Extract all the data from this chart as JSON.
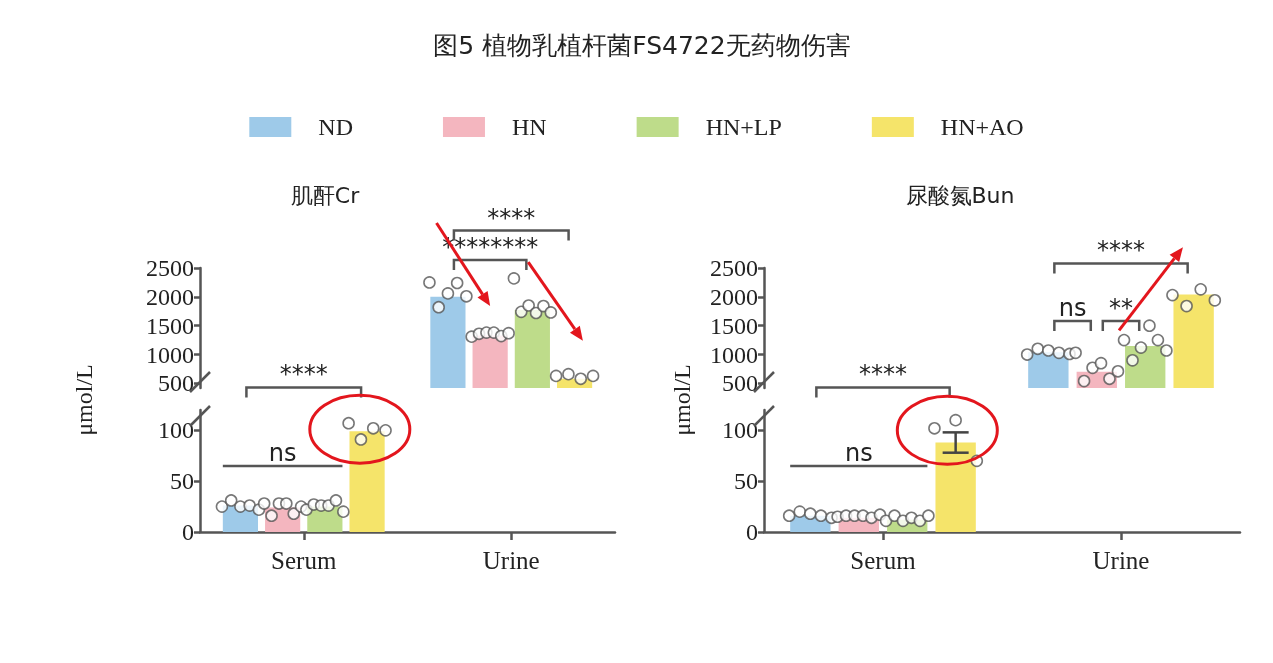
{
  "chart_data": [
    {
      "type": "bar",
      "title": "图5 植物乳植杆菌FS4722无药物伤害",
      "subtitle": "肌酐Cr",
      "legend": "top",
      "marker": "circle",
      "tick_labels": "y",
      "categories": [
        "Serum",
        "Urine"
      ],
      "ylim": [
        420,
        2500
      ],
      "yticks": [
        500,
        1000,
        1500,
        2000,
        2500
      ],
      "series": [
        {
          "name": "ND",
          "color": "#9ecae9",
          "values": [
            null,
            2000
          ]
        },
        {
          "name": "HN",
          "color": "#f4b6bf",
          "values": [
            null,
            1330
          ]
        },
        {
          "name": "HN+LP",
          "color": "#bedc8a",
          "values": [
            null,
            1770
          ]
        },
        {
          "name": "HN+AO",
          "color": "#f5e46a",
          "values": [
            null,
            580
          ]
        },
        {
          "type": "scatter",
          "color": "#ffffff",
          "x": [
            "Urine",
            "Urine",
            "Urine",
            "Urine",
            "Urine"
          ],
          "values": [
            2250,
            1820,
            2060,
            2240,
            2010
          ]
        },
        {
          "type": "scatter",
          "color": "#ffffff",
          "x": [
            "Urine",
            "Urine",
            "Urine",
            "Urine",
            "Urine",
            "Urine"
          ],
          "values": [
            1310,
            1360,
            1380,
            1380,
            1320,
            1370
          ]
        },
        {
          "type": "scatter",
          "color": "#ffffff",
          "x": [
            "Urine",
            "Urine",
            "Urine",
            "Urine",
            "Urine",
            "Urine"
          ],
          "values": [
            2320,
            1740,
            1850,
            1720,
            1840,
            1730
          ]
        },
        {
          "type": "scatter",
          "color": "#ffffff",
          "x": [
            "Urine",
            "Urine",
            "Urine",
            "Urine"
          ],
          "values": [
            630,
            660,
            580,
            630
          ]
        }
      ],
      "annotations": [
        "****",
        "****",
        "********"
      ]
    },
    {
      "type": "bar",
      "ylabel": "μmol/L",
      "marker": "circle",
      "categories": [
        "Serum",
        "Urine"
      ],
      "ylim": [
        0,
        120
      ],
      "yticks": [
        0,
        50,
        100
      ],
      "series": [
        {
          "color": "#9ecae9",
          "values": [
            26,
            null
          ]
        },
        {
          "color": "#f4b6bf",
          "values": [
            24,
            null
          ]
        },
        {
          "color": "#bedc8a",
          "values": [
            25,
            null
          ]
        },
        {
          "color": "#f5e46a",
          "values": [
            99,
            null
          ]
        },
        {
          "type": "scatter",
          "color": "#ffffff",
          "x": [
            "Serum",
            "Serum",
            "Serum",
            "Serum",
            "Serum"
          ],
          "values": [
            25,
            31,
            25,
            26,
            22
          ]
        },
        {
          "type": "scatter",
          "color": "#ffffff",
          "x": [
            "Serum",
            "Serum",
            "Serum",
            "Serum",
            "Serum",
            "Serum"
          ],
          "values": [
            28,
            16,
            28,
            28,
            18,
            25
          ]
        },
        {
          "type": "scatter",
          "color": "#ffffff",
          "x": [
            "Serum",
            "Serum",
            "Serum",
            "Serum",
            "Serum",
            "Serum"
          ],
          "values": [
            22,
            27,
            26,
            26,
            31,
            20
          ]
        },
        {
          "type": "scatter",
          "color": "#ffffff",
          "x": [
            "Serum",
            "Serum",
            "Serum",
            "Serum"
          ],
          "values": [
            107,
            91,
            102,
            100
          ]
        }
      ],
      "annotations": [
        "ns"
      ]
    },
    {
      "type": "bar",
      "subtitle": "尿酸氮Bun",
      "marker": "circle",
      "tick_labels": "y",
      "categories": [
        "Serum",
        "Urine"
      ],
      "ylim": [
        420,
        2500
      ],
      "yticks": [
        500,
        1000,
        1500,
        2000,
        2500
      ],
      "series": [
        {
          "color": "#9ecae9",
          "values": [
            null,
            1040
          ]
        },
        {
          "color": "#f4b6bf",
          "values": [
            null,
            700
          ]
        },
        {
          "color": "#bedc8a",
          "values": [
            null,
            1150
          ]
        },
        {
          "color": "#f5e46a",
          "values": [
            null,
            2040
          ]
        },
        {
          "type": "scatter",
          "color": "#ffffff",
          "x": [
            "Urine",
            "Urine",
            "Urine",
            "Urine",
            "Urine"
          ],
          "values": [
            1000,
            1100,
            1070,
            1030,
            1010
          ]
        },
        {
          "type": "scatter",
          "color": "#ffffff",
          "x": [
            "Urine",
            "Urine",
            "Urine",
            "Urine",
            "Urine",
            "Urine"
          ],
          "values": [
            1030,
            540,
            770,
            850,
            580,
            710
          ]
        },
        {
          "type": "scatter",
          "color": "#ffffff",
          "x": [
            "Urine",
            "Urine",
            "Urine",
            "Urine",
            "Urine",
            "Urine"
          ],
          "values": [
            1250,
            900,
            1120,
            1500,
            1250,
            1070
          ]
        },
        {
          "type": "scatter",
          "color": "#ffffff",
          "x": [
            "Urine",
            "Urine",
            "Urine",
            "Urine"
          ],
          "values": [
            2030,
            1840,
            2130,
            1940
          ]
        }
      ],
      "annotations": [
        "****",
        "ns",
        "**",
        "****"
      ]
    },
    {
      "type": "bar",
      "ylabel": "μmol/L",
      "marker": "circle",
      "categories": [
        "Serum",
        "Urine"
      ],
      "ylim": [
        0,
        120
      ],
      "yticks": [
        0,
        50,
        100
      ],
      "series": [
        {
          "color": "#9ecae9",
          "values": [
            16,
            null
          ]
        },
        {
          "color": "#f4b6bf",
          "values": [
            14,
            null
          ]
        },
        {
          "color": "#bedc8a",
          "values": [
            12,
            null
          ]
        },
        {
          "color": "#f5e46a",
          "values": [
            88,
            null
          ],
          "errors": [
            10,
            null
          ]
        },
        {
          "type": "scatter",
          "color": "#ffffff",
          "x": [
            "Serum",
            "Serum",
            "Serum",
            "Serum",
            "Serum"
          ],
          "values": [
            16,
            20,
            18,
            16,
            14
          ]
        },
        {
          "type": "scatter",
          "color": "#ffffff",
          "x": [
            "Serum",
            "Serum",
            "Serum",
            "Serum",
            "Serum",
            "Serum"
          ],
          "values": [
            15,
            16,
            16,
            16,
            14,
            17
          ]
        },
        {
          "type": "scatter",
          "color": "#ffffff",
          "x": [
            "Serum",
            "Serum",
            "Serum",
            "Serum",
            "Serum",
            "Serum"
          ],
          "values": [
            11,
            16,
            11,
            14,
            11,
            16
          ]
        },
        {
          "type": "scatter",
          "color": "#ffffff",
          "x": [
            "Serum",
            "Serum",
            "Serum"
          ],
          "values": [
            102,
            110,
            70
          ]
        }
      ],
      "annotations": [
        "ns"
      ]
    }
  ]
}
